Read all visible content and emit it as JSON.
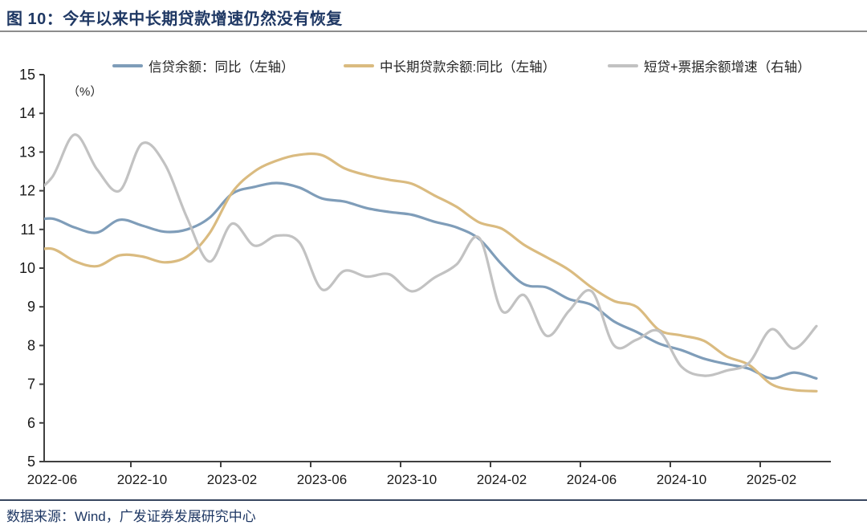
{
  "header": {
    "title": "图 10：今年以来中长期贷款增速仍然没有恢复"
  },
  "footer": {
    "source": "数据来源：Wind，广发证券发展研究中心"
  },
  "chart_data": {
    "type": "line",
    "title": "图 10：今年以来中长期贷款增速仍然没有恢复",
    "unit_label": "（%）",
    "legend_position": "top",
    "grid": false,
    "background": "#ffffff",
    "axis_color": "#404040",
    "tick_label_color": "#1a1a1a",
    "x": [
      "2022-05",
      "2022-06",
      "2022-07",
      "2022-08",
      "2022-09",
      "2022-10",
      "2022-11",
      "2022-12",
      "2023-01",
      "2023-02",
      "2023-03",
      "2023-04",
      "2023-05",
      "2023-06",
      "2023-07",
      "2023-08",
      "2023-09",
      "2023-10",
      "2023-11",
      "2023-12",
      "2024-01",
      "2024-02",
      "2024-03",
      "2024-04",
      "2024-05",
      "2024-06",
      "2024-07",
      "2024-08",
      "2024-09",
      "2024-10",
      "2024-11",
      "2024-12",
      "2025-01",
      "2025-02",
      "2025-03",
      "2025-04"
    ],
    "x_tick_labels": [
      "2022-06",
      "2022-10",
      "2023-02",
      "2023-06",
      "2023-10",
      "2024-02",
      "2024-06",
      "2024-10",
      "2025-02"
    ],
    "y_axis_left": {
      "min": 5,
      "max": 15,
      "step": 1,
      "tick_labels": [
        "5",
        "6",
        "7",
        "8",
        "9",
        "10",
        "11",
        "12",
        "13",
        "14",
        "15"
      ]
    },
    "y_axis_right": {
      "labeled": false
    },
    "series": [
      {
        "name": "信贷余额：同比（左轴）",
        "axis": "left",
        "color": "#7f9db9",
        "values": [
          11.2,
          11.28,
          11.05,
          10.92,
          11.25,
          11.1,
          10.94,
          11.0,
          11.3,
          11.92,
          12.1,
          12.2,
          12.08,
          11.8,
          11.72,
          11.55,
          11.45,
          11.38,
          11.2,
          11.05,
          10.75,
          10.1,
          9.58,
          9.5,
          9.2,
          9.05,
          8.62,
          8.35,
          8.05,
          7.88,
          7.66,
          7.52,
          7.4,
          7.15,
          7.3,
          7.15
        ]
      },
      {
        "name": "中长期贷款余额:同比（左轴）",
        "axis": "left",
        "color": "#dabb80",
        "values": [
          10.42,
          10.5,
          10.18,
          10.05,
          10.33,
          10.3,
          10.15,
          10.3,
          10.9,
          11.95,
          12.5,
          12.78,
          12.93,
          12.92,
          12.58,
          12.4,
          12.28,
          12.18,
          11.88,
          11.58,
          11.18,
          11.02,
          10.6,
          10.28,
          9.95,
          9.5,
          9.15,
          9.0,
          8.4,
          8.26,
          8.12,
          7.72,
          7.5,
          7.0,
          6.85,
          6.82
        ]
      },
      {
        "name": "短贷+票据余额增速（右轴）",
        "axis": "right",
        "color": "#c2c2c2",
        "values": [
          11.88,
          12.35,
          13.45,
          12.55,
          12.0,
          13.22,
          12.7,
          11.3,
          10.17,
          11.15,
          10.58,
          10.84,
          10.66,
          9.45,
          9.93,
          9.78,
          9.84,
          9.4,
          9.75,
          10.1,
          10.78,
          8.9,
          9.3,
          8.25,
          8.9,
          9.4,
          8.0,
          8.15,
          8.37,
          7.45,
          7.22,
          7.35,
          7.55,
          8.42,
          7.92,
          8.5
        ]
      }
    ]
  }
}
